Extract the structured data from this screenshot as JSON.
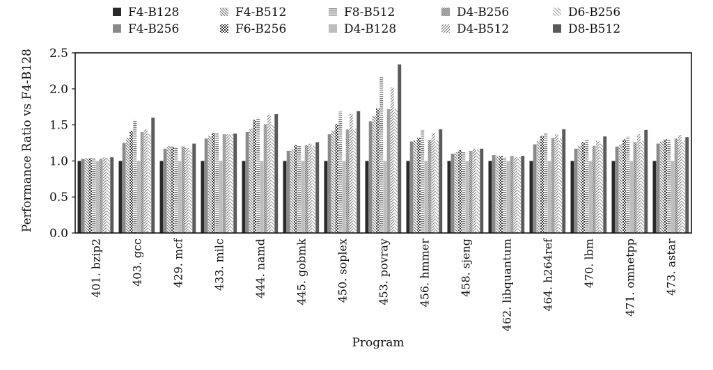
{
  "chart_data": {
    "type": "bar",
    "xlabel": "Program",
    "ylabel": "Performance Ratio vs F4-B128",
    "ylim": [
      0,
      2.5
    ],
    "yticks": [
      "0.0",
      "0.5",
      "1.0",
      "1.5",
      "2.0",
      "2.5"
    ],
    "ytick_values": [
      0,
      0.5,
      1.0,
      1.5,
      2.0,
      2.5
    ],
    "grid": false,
    "legend_position": "top",
    "categories": [
      "401. bzip2",
      "403. gcc",
      "429. mcf",
      "433. milc",
      "444. namd",
      "445. gobmk",
      "450. soplex",
      "453. povray",
      "456. hmmer",
      "458. sjeng",
      "462. libquantum",
      "464. h264ref",
      "470. lbm",
      "471. omnetpp",
      "473. astar"
    ],
    "series": [
      {
        "name": "F4-B128",
        "pattern": "solid-dark",
        "values": [
          1.0,
          1.0,
          1.0,
          1.0,
          1.0,
          1.0,
          1.0,
          1.0,
          1.0,
          1.0,
          1.0,
          1.0,
          1.0,
          1.0,
          1.0
        ]
      },
      {
        "name": "F4-B256",
        "pattern": "solid-gray",
        "values": [
          1.03,
          1.25,
          1.17,
          1.31,
          1.4,
          1.14,
          1.37,
          1.55,
          1.27,
          1.1,
          1.08,
          1.23,
          1.17,
          1.2,
          1.24
        ]
      },
      {
        "name": "F4-B512",
        "pattern": "diag-back",
        "values": [
          1.04,
          1.32,
          1.21,
          1.35,
          1.45,
          1.16,
          1.42,
          1.62,
          1.29,
          1.12,
          1.07,
          1.28,
          1.21,
          1.23,
          1.27
        ]
      },
      {
        "name": "F6-B256",
        "pattern": "check",
        "values": [
          1.04,
          1.42,
          1.2,
          1.39,
          1.57,
          1.22,
          1.51,
          1.73,
          1.32,
          1.15,
          1.07,
          1.35,
          1.26,
          1.3,
          1.3
        ]
      },
      {
        "name": "F8-B512",
        "pattern": "horiz",
        "values": [
          1.04,
          1.57,
          1.19,
          1.38,
          1.6,
          1.21,
          1.69,
          2.16,
          1.43,
          1.13,
          1.05,
          1.38,
          1.3,
          1.34,
          1.3
        ]
      },
      {
        "name": "D4-B128",
        "pattern": "solid-light",
        "values": [
          1.0,
          1.0,
          1.0,
          1.0,
          1.0,
          1.0,
          1.0,
          1.0,
          1.0,
          1.0,
          1.0,
          1.0,
          1.0,
          1.0,
          1.0
        ]
      },
      {
        "name": "D4-B256",
        "pattern": "small-check",
        "values": [
          1.03,
          1.4,
          1.2,
          1.37,
          1.51,
          1.22,
          1.44,
          1.72,
          1.29,
          1.14,
          1.07,
          1.32,
          1.21,
          1.26,
          1.31
        ]
      },
      {
        "name": "D4-B512",
        "pattern": "diag-fwd",
        "values": [
          1.05,
          1.44,
          1.18,
          1.37,
          1.64,
          1.24,
          1.65,
          2.02,
          1.39,
          1.17,
          1.05,
          1.37,
          1.28,
          1.37,
          1.36
        ]
      },
      {
        "name": "D6-B256",
        "pattern": "diag-back-light",
        "values": [
          1.04,
          1.38,
          1.16,
          1.37,
          1.5,
          1.21,
          1.45,
          1.72,
          1.29,
          1.16,
          1.05,
          1.31,
          1.24,
          1.28,
          1.28
        ]
      },
      {
        "name": "D8-B512",
        "pattern": "solid-mid",
        "values": [
          1.05,
          1.6,
          1.24,
          1.38,
          1.65,
          1.26,
          1.69,
          2.34,
          1.44,
          1.17,
          1.07,
          1.44,
          1.34,
          1.43,
          1.33
        ]
      }
    ]
  }
}
